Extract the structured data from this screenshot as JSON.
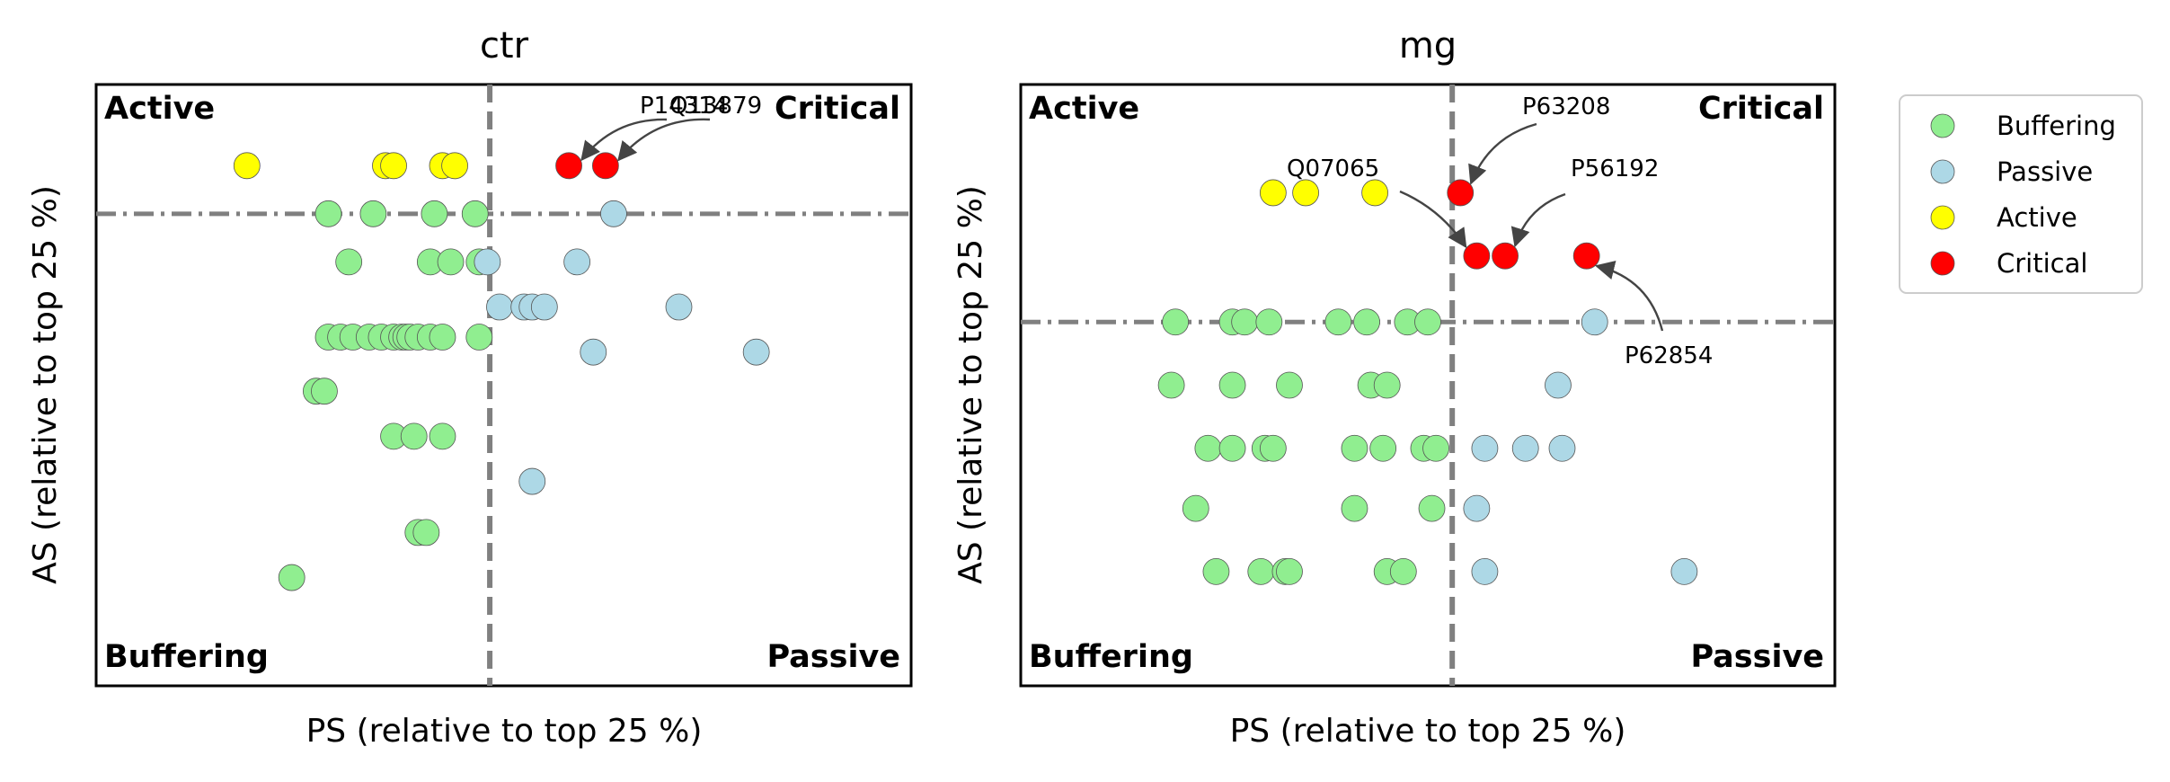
{
  "chart_data": [
    {
      "type": "scatter",
      "title": "ctr",
      "xlabel": "PS (relative to top 25 %)",
      "ylabel": "AS (relative to top 25 %)",
      "xlim": [
        0,
        100
      ],
      "ylim": [
        0,
        10
      ],
      "x_threshold": 48.3,
      "y_threshold": 7.85,
      "quadrant_labels": {
        "top_left": "Active",
        "top_right": "Critical",
        "bottom_left": "Buffering",
        "bottom_right": "Passive"
      },
      "series": [
        {
          "name": "Buffering",
          "color": "#90EE90",
          "points": [
            [
              28.5,
              7.85
            ],
            [
              34,
              7.85
            ],
            [
              41.5,
              7.85
            ],
            [
              46.5,
              7.85
            ],
            [
              31,
              7.05
            ],
            [
              41,
              7.05
            ],
            [
              43.5,
              7.05
            ],
            [
              47,
              7.05
            ],
            [
              28.5,
              5.8
            ],
            [
              30,
              5.8
            ],
            [
              31.5,
              5.8
            ],
            [
              33.5,
              5.8
            ],
            [
              35,
              5.8
            ],
            [
              36.5,
              5.8
            ],
            [
              37.5,
              5.8
            ],
            [
              38,
              5.8
            ],
            [
              38.5,
              5.8
            ],
            [
              39.5,
              5.8
            ],
            [
              41,
              5.8
            ],
            [
              42.5,
              5.8
            ],
            [
              47,
              5.8
            ],
            [
              27,
              4.9
            ],
            [
              28,
              4.9
            ],
            [
              36.5,
              4.15
            ],
            [
              39,
              4.15
            ],
            [
              42.5,
              4.15
            ],
            [
              39.5,
              2.55
            ],
            [
              40.5,
              2.55
            ],
            [
              24,
              1.8
            ]
          ]
        },
        {
          "name": "Passive",
          "color": "#ADD8E6",
          "points": [
            [
              63.5,
              7.85
            ],
            [
              48,
              7.05
            ],
            [
              59,
              7.05
            ],
            [
              49.5,
              6.3
            ],
            [
              52.5,
              6.3
            ],
            [
              53.5,
              6.3
            ],
            [
              55,
              6.3
            ],
            [
              71.5,
              6.3
            ],
            [
              61,
              5.55
            ],
            [
              81,
              5.55
            ],
            [
              53.5,
              3.4
            ]
          ]
        },
        {
          "name": "Active",
          "color": "#FFFF00",
          "points": [
            [
              18.5,
              8.65
            ],
            [
              35.5,
              8.65
            ],
            [
              36.5,
              8.65
            ],
            [
              42.5,
              8.65
            ],
            [
              44,
              8.65
            ]
          ]
        },
        {
          "name": "Critical",
          "color": "#FF0000",
          "points": [
            [
              58,
              8.65
            ],
            [
              62.5,
              8.65
            ]
          ]
        }
      ],
      "annotations": [
        {
          "text": "P14314",
          "x": 58,
          "y": 8.65
        },
        {
          "text": "Q13879",
          "x": 62.5,
          "y": 8.65
        }
      ]
    },
    {
      "type": "scatter",
      "title": "mg",
      "xlabel": "PS (relative to top 25 %)",
      "ylabel": "AS (relative to top 25 %)",
      "xlim": [
        0,
        100
      ],
      "ylim": [
        0,
        10
      ],
      "x_threshold": 53,
      "y_threshold": 6.05,
      "quadrant_labels": {
        "top_left": "Active",
        "top_right": "Critical",
        "bottom_left": "Buffering",
        "bottom_right": "Passive"
      },
      "series": [
        {
          "name": "Buffering",
          "color": "#90EE90",
          "points": [
            [
              19,
              6.05
            ],
            [
              26,
              6.05
            ],
            [
              27.5,
              6.05
            ],
            [
              30.5,
              6.05
            ],
            [
              39,
              6.05
            ],
            [
              42.5,
              6.05
            ],
            [
              47.5,
              6.05
            ],
            [
              50,
              6.05
            ],
            [
              18.5,
              5.0
            ],
            [
              26,
              5.0
            ],
            [
              33,
              5.0
            ],
            [
              43,
              5.0
            ],
            [
              45,
              5.0
            ],
            [
              23,
              3.95
            ],
            [
              26,
              3.95
            ],
            [
              30,
              3.95
            ],
            [
              31,
              3.95
            ],
            [
              41,
              3.95
            ],
            [
              44.5,
              3.95
            ],
            [
              49.5,
              3.95
            ],
            [
              51,
              3.95
            ],
            [
              21.5,
              2.95
            ],
            [
              41,
              2.95
            ],
            [
              50.5,
              2.95
            ],
            [
              24,
              1.9
            ],
            [
              29.5,
              1.9
            ],
            [
              32.5,
              1.9
            ],
            [
              33,
              1.9
            ],
            [
              45,
              1.9
            ],
            [
              47,
              1.9
            ]
          ]
        },
        {
          "name": "Passive",
          "color": "#ADD8E6",
          "points": [
            [
              70.5,
              6.05
            ],
            [
              66,
              5.0
            ],
            [
              57,
              3.95
            ],
            [
              62,
              3.95
            ],
            [
              66.5,
              3.95
            ],
            [
              56,
              2.95
            ],
            [
              57,
              1.9
            ],
            [
              81.5,
              1.9
            ]
          ]
        },
        {
          "name": "Active",
          "color": "#FFFF00",
          "points": [
            [
              31,
              8.2
            ],
            [
              35,
              8.2
            ],
            [
              43.5,
              8.2
            ]
          ]
        },
        {
          "name": "Critical",
          "color": "#FF0000",
          "points": [
            [
              54,
              8.2
            ],
            [
              56,
              7.15
            ],
            [
              59.5,
              7.15
            ],
            [
              69.5,
              7.15
            ]
          ]
        }
      ],
      "annotations": [
        {
          "text": "P63208",
          "x": 54,
          "y": 8.2
        },
        {
          "text": "Q07065",
          "x": 56,
          "y": 7.15
        },
        {
          "text": "P56192",
          "x": 59.5,
          "y": 7.15
        },
        {
          "text": "P62854",
          "x": 69.5,
          "y": 7.15
        }
      ]
    }
  ],
  "legend": {
    "location": "upper-right",
    "items": [
      {
        "label": "Buffering",
        "color": "#90EE90"
      },
      {
        "label": "Passive",
        "color": "#ADD8E6"
      },
      {
        "label": "Active",
        "color": "#FFFF00"
      },
      {
        "label": "Critical",
        "color": "#FF0000"
      }
    ]
  }
}
